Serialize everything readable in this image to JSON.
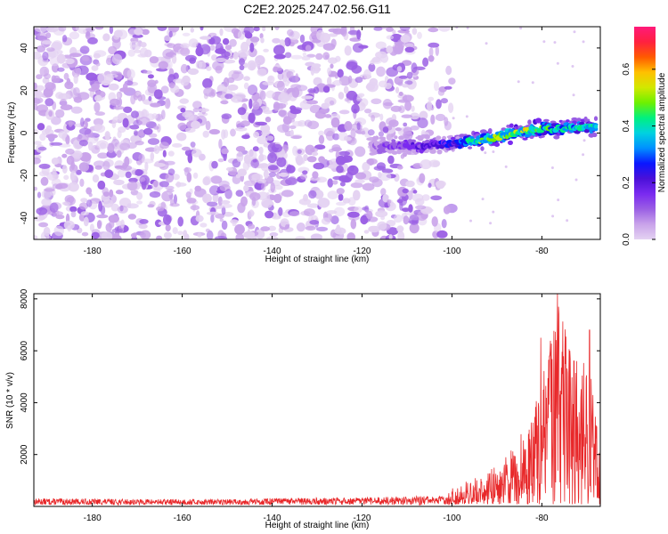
{
  "title": "C2E2.2025.247.02.56.G11",
  "colors": {
    "background": "#ffffff",
    "signal_line": "#e8282a",
    "colormap": [
      "#e4d2f2",
      "#c9a3ea",
      "#9a5ee4",
      "#7a2af0",
      "#4a10d8",
      "#0a16ff",
      "#0090ff",
      "#00d2e0",
      "#00f080",
      "#6ef000",
      "#d2e800",
      "#ffc000",
      "#ff5a00",
      "#ff2040",
      "#ff1a7a"
    ]
  },
  "chart_data": [
    {
      "type": "heatmap",
      "title": "",
      "xlabel": "Height of straight line (km)",
      "ylabel": "Frequency (Hz)",
      "xlim": [
        -193,
        -67
      ],
      "ylim": [
        -50,
        50
      ],
      "xticks": [
        -180,
        -160,
        -140,
        -120,
        -100,
        -80
      ],
      "yticks": [
        40,
        20,
        0,
        -20,
        -40
      ],
      "colorbar": {
        "label": "Normalized spectral amplitude",
        "range": [
          0.0,
          0.75
        ],
        "ticks": [
          "0.0",
          "0.2",
          "0.4",
          "0.6"
        ],
        "tick_values": [
          0.0,
          0.2,
          0.4,
          0.6
        ]
      },
      "background_noise": {
        "x_range": [
          -193,
          -100
        ],
        "y_range": [
          -50,
          50
        ],
        "amplitude_range": [
          0.0,
          0.12
        ],
        "density": 0.85,
        "seed": 7
      },
      "ridge": [
        {
          "x": -118,
          "y": -6,
          "amp": 0.1
        },
        {
          "x": -112,
          "y": -6,
          "amp": 0.16
        },
        {
          "x": -106,
          "y": -6,
          "amp": 0.2
        },
        {
          "x": -100,
          "y": -5,
          "amp": 0.26
        },
        {
          "x": -96,
          "y": -4,
          "amp": 0.4
        },
        {
          "x": -92,
          "y": -3,
          "amp": 0.5
        },
        {
          "x": -88,
          "y": -1,
          "amp": 0.48
        },
        {
          "x": -84,
          "y": 1,
          "amp": 0.52
        },
        {
          "x": -80,
          "y": 2,
          "amp": 0.45
        },
        {
          "x": -76,
          "y": 2,
          "amp": 0.42
        },
        {
          "x": -72,
          "y": 3,
          "amp": 0.4
        },
        {
          "x": -68,
          "y": 3,
          "amp": 0.38
        }
      ]
    },
    {
      "type": "line",
      "title": "",
      "xlabel": "Height of straight line (km)",
      "ylabel": "SNR (10 * v/v)",
      "xlim": [
        -193,
        -67
      ],
      "ylim": [
        0,
        8200
      ],
      "xticks": [
        -180,
        -160,
        -140,
        -120,
        -100,
        -80
      ],
      "yticks": [
        2000,
        4000,
        6000,
        8000
      ],
      "envelope": [
        {
          "x": -193,
          "y": 250
        },
        {
          "x": -170,
          "y": 220
        },
        {
          "x": -150,
          "y": 220
        },
        {
          "x": -140,
          "y": 260
        },
        {
          "x": -120,
          "y": 280
        },
        {
          "x": -110,
          "y": 330
        },
        {
          "x": -102,
          "y": 350
        },
        {
          "x": -98,
          "y": 700
        },
        {
          "x": -94,
          "y": 1000
        },
        {
          "x": -90,
          "y": 1300
        },
        {
          "x": -87,
          "y": 1900
        },
        {
          "x": -84,
          "y": 2600
        },
        {
          "x": -81,
          "y": 3600
        },
        {
          "x": -79,
          "y": 5000
        },
        {
          "x": -77,
          "y": 6500
        },
        {
          "x": -76,
          "y": 7000
        },
        {
          "x": -74,
          "y": 5500
        },
        {
          "x": -72,
          "y": 4600
        },
        {
          "x": -70,
          "y": 5500
        },
        {
          "x": -68,
          "y": 3200
        },
        {
          "x": -67,
          "y": 2800
        }
      ],
      "peaks": [
        {
          "x": -76.5,
          "y": 8200
        },
        {
          "x": -80.2,
          "y": 6500
        },
        {
          "x": -69.4,
          "y": 6800
        },
        {
          "x": -72.3,
          "y": 5600
        },
        {
          "x": -78.3,
          "y": 5800
        }
      ],
      "seed": 13
    }
  ]
}
